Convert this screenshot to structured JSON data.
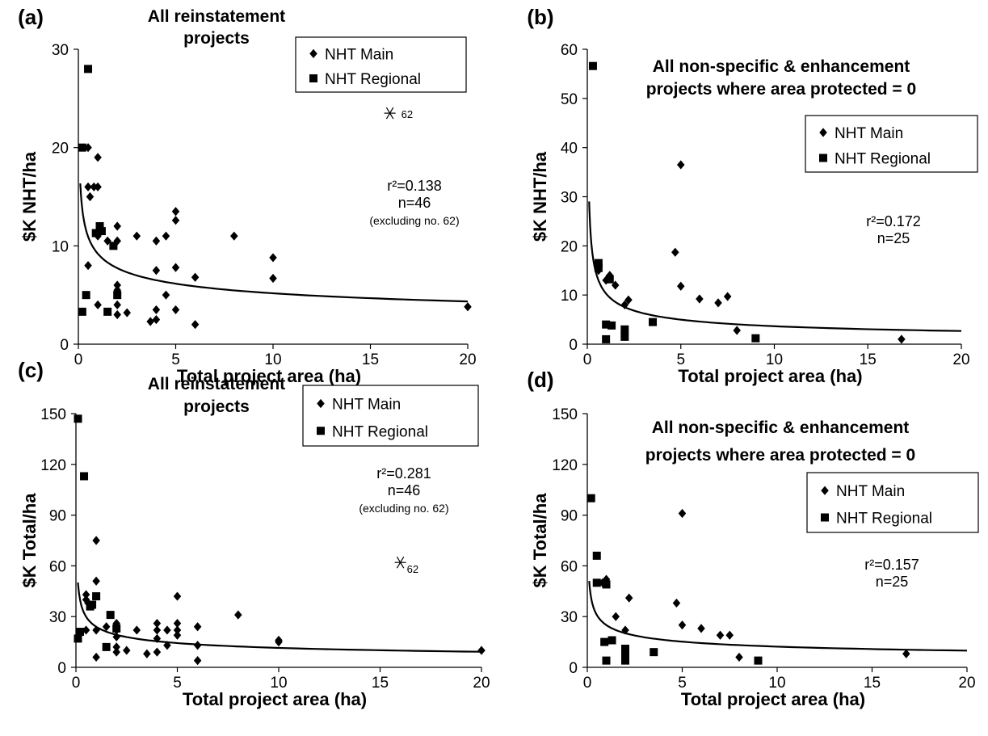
{
  "chart_data": [
    {
      "panel": "(a)",
      "type": "scatter",
      "title_lines": [
        "All reinstatement",
        "projects"
      ],
      "xlabel": "Total project area (ha)",
      "ylabel": "$K NHT/ha",
      "xlim": [
        0,
        20
      ],
      "ylim": [
        0,
        30
      ],
      "xticks": [
        0,
        5,
        10,
        15,
        20
      ],
      "yticks": [
        0,
        10,
        20,
        30
      ],
      "legend": [
        "NHT Main",
        "NHT Regional"
      ],
      "legend_position": "top-right",
      "stats": {
        "r2": "r²=0.138",
        "n": "n=46",
        "note": "(excluding no. 62)"
      },
      "outlier": {
        "x": 16,
        "y": 23.5,
        "label": "62"
      },
      "trend": {
        "a": 9.2,
        "b": -0.25
      },
      "series": [
        {
          "name": "NHT Main",
          "marker": "diamond",
          "points": [
            [
              0.5,
              20
            ],
            [
              0.5,
              16
            ],
            [
              0.6,
              15
            ],
            [
              0.8,
              16
            ],
            [
              0.5,
              8
            ],
            [
              1,
              19
            ],
            [
              1,
              16
            ],
            [
              1,
              11
            ],
            [
              1,
              4
            ],
            [
              1.5,
              10.5
            ],
            [
              2,
              12
            ],
            [
              2,
              10.5
            ],
            [
              2,
              6
            ],
            [
              2,
              5.5
            ],
            [
              2,
              4
            ],
            [
              2,
              3
            ],
            [
              2.5,
              3.2
            ],
            [
              3,
              11
            ],
            [
              3.7,
              2.3
            ],
            [
              4,
              10.5
            ],
            [
              4,
              7.5
            ],
            [
              4,
              3.5
            ],
            [
              4,
              2.5
            ],
            [
              4.5,
              11
            ],
            [
              4.5,
              5
            ],
            [
              5,
              13.5
            ],
            [
              5,
              12.6
            ],
            [
              5,
              7.8
            ],
            [
              5,
              3.5
            ],
            [
              6,
              6.8
            ],
            [
              6,
              2
            ],
            [
              8,
              11
            ],
            [
              10,
              8.8
            ],
            [
              10,
              6.7
            ],
            [
              20,
              3.8
            ]
          ]
        },
        {
          "name": "NHT Regional",
          "marker": "square",
          "points": [
            [
              0.2,
              20
            ],
            [
              0.5,
              28
            ],
            [
              0.2,
              3.3
            ],
            [
              0.4,
              5
            ],
            [
              0.9,
              11.3
            ],
            [
              1.1,
              12
            ],
            [
              1.2,
              11.5
            ],
            [
              1.5,
              3.3
            ],
            [
              1.8,
              10
            ],
            [
              2,
              5
            ]
          ]
        }
      ]
    },
    {
      "panel": "(b)",
      "type": "scatter",
      "title_lines": [
        "All non-specific & enhancement",
        "projects where area protected = 0"
      ],
      "xlabel": "Total project area (ha)",
      "ylabel": "$K NHT/ha",
      "xlim": [
        0,
        20
      ],
      "ylim": [
        0,
        60
      ],
      "xticks": [
        0,
        5,
        10,
        15,
        20
      ],
      "yticks": [
        0,
        10,
        20,
        30,
        40,
        50,
        60
      ],
      "legend": [
        "NHT Main",
        "NHT Regional"
      ],
      "legend_position": "top-right",
      "stats": {
        "r2": "r²=0.172",
        "n": "n=25"
      },
      "trend": {
        "a": 10.3,
        "b": -0.45
      },
      "series": [
        {
          "name": "NHT Main",
          "marker": "diamond",
          "points": [
            [
              0.6,
              15
            ],
            [
              1,
              13
            ],
            [
              1.2,
              14
            ],
            [
              1.5,
              12
            ],
            [
              2,
              8
            ],
            [
              2.2,
              9
            ],
            [
              4.7,
              18.7
            ],
            [
              5,
              36.5
            ],
            [
              5,
              11.8
            ],
            [
              6,
              9.2
            ],
            [
              7,
              8.4
            ],
            [
              7.5,
              9.7
            ],
            [
              8,
              2.8
            ],
            [
              16.8,
              1
            ]
          ]
        },
        {
          "name": "NHT Regional",
          "marker": "square",
          "points": [
            [
              0.3,
              56.6
            ],
            [
              0.6,
              15.5
            ],
            [
              0.6,
              16.5
            ],
            [
              1,
              4
            ],
            [
              1,
              1
            ],
            [
              1.3,
              3.8
            ],
            [
              1.2,
              13.2
            ],
            [
              2,
              3
            ],
            [
              2,
              1.5
            ],
            [
              3.5,
              4.5
            ],
            [
              9,
              1.2
            ]
          ]
        }
      ]
    },
    {
      "panel": "(c)",
      "type": "scatter",
      "title_lines": [
        "All reinstatement",
        "projects"
      ],
      "xlabel": "Total project area (ha)",
      "ylabel": "$K Total/ha",
      "xlim": [
        0,
        20
      ],
      "ylim": [
        0,
        150
      ],
      "xticks": [
        0,
        5,
        10,
        15,
        20
      ],
      "yticks": [
        0,
        30,
        60,
        90,
        120,
        150
      ],
      "legend": [
        "NHT Main",
        "NHT Regional"
      ],
      "legend_position": "top-right",
      "stats": {
        "r2": "r²=0.281",
        "n": "n=46",
        "note": "(excluding no. 62)"
      },
      "outlier": {
        "x": 16,
        "y": 62,
        "label": "62"
      },
      "trend": {
        "a": 24,
        "b": -0.32
      },
      "series": [
        {
          "name": "NHT Main",
          "marker": "diamond",
          "points": [
            [
              0.5,
              43
            ],
            [
              0.5,
              40
            ],
            [
              0.6,
              38
            ],
            [
              0.5,
              22
            ],
            [
              1,
              75
            ],
            [
              1,
              51
            ],
            [
              1,
              22
            ],
            [
              1,
              6
            ],
            [
              1.5,
              24
            ],
            [
              2,
              26
            ],
            [
              2,
              22
            ],
            [
              2,
              18
            ],
            [
              2,
              12
            ],
            [
              2,
              9
            ],
            [
              2.5,
              10
            ],
            [
              3,
              22
            ],
            [
              3.5,
              8
            ],
            [
              4,
              26
            ],
            [
              4,
              22
            ],
            [
              4,
              17
            ],
            [
              4,
              9
            ],
            [
              4.5,
              22
            ],
            [
              4.5,
              13
            ],
            [
              5,
              42
            ],
            [
              5,
              26
            ],
            [
              5,
              22
            ],
            [
              5,
              19
            ],
            [
              6,
              24
            ],
            [
              6,
              13
            ],
            [
              6,
              4
            ],
            [
              8,
              31
            ],
            [
              10,
              16
            ],
            [
              10,
              15
            ],
            [
              20,
              10
            ]
          ]
        },
        {
          "name": "NHT Regional",
          "marker": "square",
          "points": [
            [
              0.1,
              147
            ],
            [
              0.1,
              17
            ],
            [
              0.2,
              21
            ],
            [
              0.4,
              113
            ],
            [
              0.7,
              36
            ],
            [
              0.8,
              37
            ],
            [
              1,
              42
            ],
            [
              1.5,
              12
            ],
            [
              1.7,
              31
            ],
            [
              2,
              23
            ]
          ]
        }
      ]
    },
    {
      "panel": "(d)",
      "type": "scatter",
      "title_lines": [
        "All non-specific & enhancement",
        "projects where area protected = 0"
      ],
      "xlabel": "Total project area (ha)",
      "ylabel": "$K Total/ha",
      "xlim": [
        0,
        20
      ],
      "ylim": [
        0,
        150
      ],
      "xticks": [
        0,
        5,
        10,
        15,
        20
      ],
      "yticks": [
        0,
        30,
        60,
        90,
        120,
        150
      ],
      "legend": [
        "NHT Main",
        "NHT Regional"
      ],
      "legend_position": "top-right",
      "stats": {
        "r2": "r²=0.157",
        "n": "n=25"
      },
      "trend": {
        "a": 25,
        "b": -0.31
      },
      "series": [
        {
          "name": "NHT Main",
          "marker": "diamond",
          "points": [
            [
              0.8,
              50
            ],
            [
              1,
              52
            ],
            [
              1.5,
              30
            ],
            [
              2,
              22
            ],
            [
              2.2,
              41
            ],
            [
              4.7,
              38
            ],
            [
              5,
              91
            ],
            [
              5,
              25
            ],
            [
              6,
              23
            ],
            [
              7,
              19
            ],
            [
              7.5,
              19
            ],
            [
              8,
              6
            ],
            [
              16.8,
              8
            ]
          ]
        },
        {
          "name": "NHT Regional",
          "marker": "square",
          "points": [
            [
              0.2,
              100
            ],
            [
              0.5,
              66
            ],
            [
              0.5,
              50
            ],
            [
              1,
              49
            ],
            [
              0.9,
              15
            ],
            [
              1,
              4
            ],
            [
              1.3,
              16
            ],
            [
              2,
              11
            ],
            [
              2,
              7
            ],
            [
              2,
              4
            ],
            [
              3.5,
              9
            ],
            [
              9,
              4
            ]
          ]
        }
      ]
    }
  ]
}
